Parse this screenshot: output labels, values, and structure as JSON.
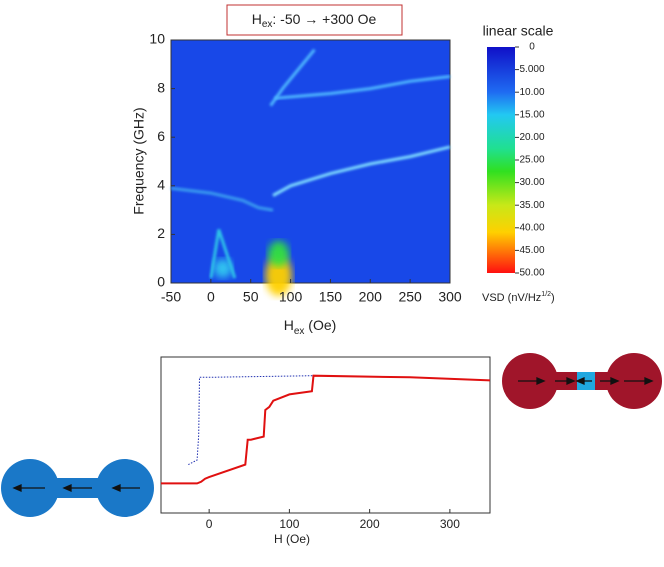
{
  "chart_data": [
    {
      "type": "heatmap",
      "title_prefix": "H",
      "title_subscript": "ex",
      "title_suffix": ": -50 → +300 Oe",
      "xlabel_prefix": "H",
      "xlabel_subscript": "ex",
      "xlabel_suffix": " (Oe)",
      "ylabel": "Frequency (GHz)",
      "xlim": [
        -50,
        300
      ],
      "xticks": [
        -50,
        0,
        50,
        100,
        150,
        200,
        250,
        300
      ],
      "ylim": [
        0,
        10
      ],
      "yticks": [
        0,
        2,
        4,
        6,
        8,
        10
      ],
      "colorbar_title": "linear scale",
      "colorbar_label_prefix": "VSD (nV/Hz",
      "colorbar_label_superscript": "1/2",
      "colorbar_label_suffix": ")",
      "clim": [
        0,
        50
      ],
      "cticks": [
        0,
        {
          "value": 5,
          "label": "5.000"
        },
        {
          "value": 10,
          "label": "10.00"
        },
        {
          "value": 15,
          "label": "15.00"
        },
        {
          "value": 20,
          "label": "20.00"
        },
        {
          "value": 25,
          "label": "25.00"
        },
        {
          "value": 30,
          "label": "30.00"
        },
        {
          "value": 35,
          "label": "35.00"
        },
        {
          "value": 40,
          "label": "40.00"
        },
        {
          "value": 45,
          "label": "45.00"
        },
        {
          "value": 50,
          "label": "50.00"
        }
      ],
      "series": [
        {
          "color": "#7fdcff",
          "x": [
            78,
            100,
            150,
            200,
            250,
            300
          ],
          "values": [
            3.6,
            4.0,
            4.5,
            4.9,
            5.2,
            5.6
          ]
        },
        {
          "color": "#4fb8ff",
          "x": [
            80,
            150,
            200,
            250,
            300
          ],
          "values": [
            7.6,
            7.8,
            8.0,
            8.3,
            8.5
          ]
        },
        {
          "color": "#4fb8ff",
          "x": [
            75,
            90,
            110,
            130
          ],
          "values": [
            7.3,
            8.0,
            8.8,
            9.6
          ]
        },
        {
          "color": "#3a9cf0",
          "x": [
            -50,
            0,
            40,
            60,
            78
          ],
          "values": [
            3.9,
            3.7,
            3.4,
            3.1,
            3.0
          ]
        },
        {
          "color": "#2fc4e8",
          "x": [
            0,
            10,
            20,
            30
          ],
          "values": [
            0.2,
            2.2,
            1.2,
            0.2
          ]
        }
      ],
      "peaks": [
        {
          "x": 85,
          "y": 0.3,
          "value": 45
        },
        {
          "x": 85,
          "y": 1.2,
          "value": 22
        },
        {
          "x": 15,
          "y": 0.6,
          "value": 12
        }
      ]
    },
    {
      "type": "line",
      "xlabel": "H (Oe)",
      "xlim": [
        -60,
        350
      ],
      "xticks": [
        0,
        100,
        200,
        300
      ],
      "ylim": [
        0,
        1
      ],
      "series": [
        {
          "color": "#e01010",
          "dash": false,
          "x": [
            -60,
            -15,
            -10,
            -5,
            0,
            45,
            48,
            52,
            68,
            70,
            75,
            80,
            100,
            128,
            130,
            250,
            350
          ],
          "values": [
            0.19,
            0.19,
            0.2,
            0.22,
            0.23,
            0.31,
            0.47,
            0.47,
            0.49,
            0.66,
            0.68,
            0.72,
            0.76,
            0.78,
            0.88,
            0.87,
            0.85
          ]
        },
        {
          "color": "#2030b0",
          "dash": true,
          "x": [
            -26,
            -15,
            -13,
            -12,
            0,
            130
          ],
          "values": [
            0.31,
            0.34,
            0.5,
            0.87,
            0.87,
            0.88
          ]
        }
      ]
    }
  ]
}
